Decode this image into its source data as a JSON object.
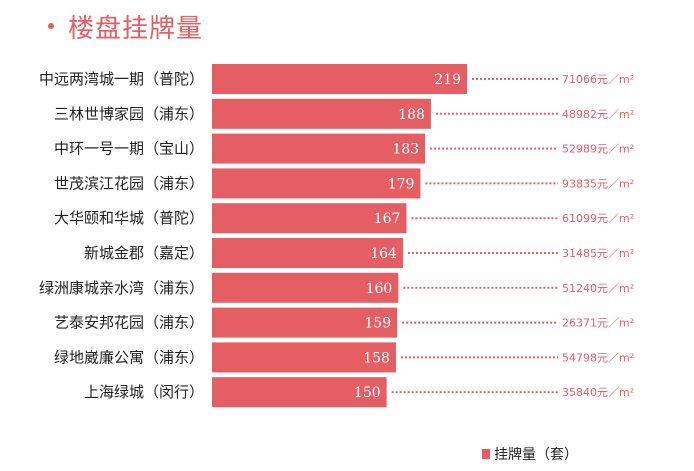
{
  "chart_data": {
    "type": "bar",
    "orientation": "horizontal",
    "title": "楼盘挂牌量",
    "categories": [
      "中远两湾城一期（普陀）",
      "三林世博家园（浦东）",
      "中环一号一期（宝山）",
      "世茂滨江花园（浦东）",
      "大华颐和华城（普陀）",
      "新城金郡（嘉定）",
      "绿洲康城亲水湾（浦东）",
      "艺泰安邦花园（浦东）",
      "绿地崴廉公寓（浦东）",
      "上海绿城（闵行）"
    ],
    "series": [
      {
        "name": "挂牌量（套）",
        "values": [
          219,
          188,
          183,
          179,
          167,
          164,
          160,
          159,
          158,
          150
        ]
      }
    ],
    "prices": [
      "71066元／m²",
      "48982元／m²",
      "52989元／m²",
      "93835元／m²",
      "61099元／m²",
      "31485元／m²",
      "51240元／m²",
      "26371元／m²",
      "54798元／m²",
      "35840元／m²"
    ],
    "xlim": [
      0,
      219
    ],
    "legend_position": "bottom-right",
    "grid": false,
    "colors": {
      "bar": "#e45e64",
      "price": "#e45e64",
      "title": "#e45e64",
      "label": "#222222"
    }
  }
}
